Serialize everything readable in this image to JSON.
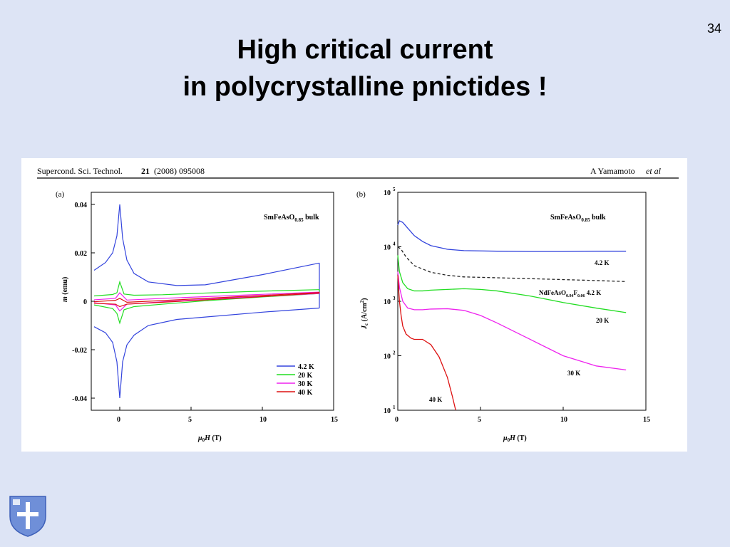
{
  "slide": {
    "number": "34",
    "title_line1": "High critical current",
    "title_line2": "in polycrystalline pnictides !"
  },
  "citation": {
    "journal": "Supercond. Sci. Technol.",
    "volume": "21",
    "year_article": "(2008) 095008",
    "authors": "A Yamamoto",
    "et_al": "et al"
  },
  "colors": {
    "background": "#dde4f5",
    "series_4_2K": "#3344dd",
    "series_20K": "#22dd22",
    "series_30K": "#ee22ee",
    "series_40K": "#dd1111",
    "nd_reference": "#222222"
  },
  "chart_data": [
    {
      "panel_label": "(a)",
      "type": "line",
      "annotation": "SmFeAsO0.85 bulk",
      "xlabel": "μ0H (T)",
      "ylabel": "m (emu)",
      "xlim": [
        -2,
        15
      ],
      "ylim": [
        -0.045,
        0.045
      ],
      "xticks": [
        "0",
        "5",
        "10",
        "15"
      ],
      "yticks": [
        "0.04",
        "0.02",
        "0",
        "-0.02",
        "-0.04"
      ],
      "legend": {
        "placement": "bottom-right",
        "entries": [
          "4.2 K",
          "20 K",
          "30 K",
          "40 K"
        ]
      },
      "series": [
        {
          "name": "4.2 K",
          "x_upper": [
            -1.8,
            -1.0,
            -0.5,
            -0.2,
            0,
            0.2,
            0.5,
            1,
            2,
            4,
            6,
            10,
            14
          ],
          "y_upper": [
            0.0128,
            0.016,
            0.02,
            0.027,
            0.04,
            0.026,
            0.017,
            0.0115,
            0.008,
            0.0065,
            0.0068,
            0.011,
            0.0158
          ],
          "x_lower": [
            -1.8,
            -1.0,
            -0.5,
            -0.2,
            0,
            0.2,
            0.5,
            1,
            2,
            4,
            6,
            10,
            14
          ],
          "y_lower": [
            -0.0105,
            -0.013,
            -0.017,
            -0.025,
            -0.04,
            -0.025,
            -0.018,
            -0.014,
            -0.01,
            -0.0075,
            -0.0065,
            -0.0045,
            -0.0028
          ]
        },
        {
          "name": "20 K",
          "x_upper": [
            -1.8,
            -0.5,
            -0.2,
            0,
            0.3,
            1,
            3,
            6,
            10,
            14
          ],
          "y_upper": [
            0.0022,
            0.0028,
            0.0035,
            0.008,
            0.003,
            0.0025,
            0.0027,
            0.0034,
            0.0042,
            0.0048
          ],
          "x_lower": [
            -1.8,
            -0.5,
            -0.2,
            0,
            0.3,
            1,
            3,
            6,
            10,
            14
          ],
          "y_lower": [
            -0.0015,
            -0.003,
            -0.005,
            -0.009,
            -0.0035,
            -0.0022,
            -0.0012,
            0.0002,
            0.0018,
            0.0032
          ]
        },
        {
          "name": "30 K",
          "x_upper": [
            -1.8,
            -0.3,
            0,
            0.5,
            3,
            8,
            14
          ],
          "y_upper": [
            0.0006,
            0.0012,
            0.0035,
            0.0005,
            0.0012,
            0.0024,
            0.0038
          ],
          "x_lower": [
            -1.8,
            -0.3,
            0,
            0.5,
            3,
            8,
            14
          ],
          "y_lower": [
            -0.0006,
            -0.0015,
            -0.004,
            -0.0012,
            -0.0002,
            0.0015,
            0.0032
          ]
        },
        {
          "name": "40 K",
          "x_upper": [
            -1.8,
            -0.3,
            0,
            0.5,
            3,
            8,
            14
          ],
          "y_upper": [
            -0.0002,
            0.0004,
            0.0012,
            -0.0004,
            0.0003,
            0.0018,
            0.0036
          ],
          "x_lower": [
            -1.8,
            -0.3,
            0,
            0.5,
            3,
            8,
            14
          ],
          "y_lower": [
            -0.0008,
            -0.0012,
            -0.0022,
            -0.0012,
            -0.0004,
            0.0012,
            0.0034
          ]
        }
      ]
    },
    {
      "panel_label": "(b)",
      "type": "line",
      "annotation": "SmFeAsO0.85 bulk",
      "xlabel": "μ0H (T)",
      "ylabel": "Jc (A/cm2)",
      "log_y": true,
      "xlim": [
        0,
        15
      ],
      "ylim": [
        10,
        100000
      ],
      "xticks": [
        "0",
        "5",
        "10",
        "15"
      ],
      "yticks_exponent": [
        "5",
        "4",
        "3",
        "2",
        "1"
      ],
      "series": [
        {
          "name": "4.2 K",
          "x": [
            0,
            0.1,
            0.3,
            0.6,
            1,
            1.5,
            2,
            3,
            4,
            6,
            8,
            10,
            12,
            13.8
          ],
          "y": [
            25000,
            30000,
            28000,
            22000,
            16000,
            12500,
            10500,
            9000,
            8500,
            8300,
            8200,
            8200,
            8300,
            8300
          ]
        },
        {
          "name": "NdFeAsO0.94F0.06 4.2 K",
          "dashed": true,
          "x": [
            0,
            0.2,
            0.5,
            1,
            2,
            3,
            4,
            6,
            8,
            10,
            12,
            13.8
          ],
          "y": [
            10000,
            9000,
            6500,
            4500,
            3400,
            3000,
            2800,
            2700,
            2600,
            2500,
            2400,
            2300
          ]
        },
        {
          "name": "20 K",
          "x": [
            0,
            0.1,
            0.3,
            0.6,
            1,
            1.5,
            2,
            3,
            4,
            5,
            6,
            8,
            10,
            12,
            13.8
          ],
          "y": [
            7000,
            3500,
            2200,
            1700,
            1550,
            1550,
            1600,
            1650,
            1700,
            1650,
            1550,
            1250,
            950,
            750,
            620
          ]
        },
        {
          "name": "30 K",
          "x": [
            0,
            0.1,
            0.3,
            0.6,
            1,
            1.5,
            2,
            3,
            4,
            5,
            6,
            8,
            10,
            12,
            13.8
          ],
          "y": [
            3500,
            1800,
            1000,
            750,
            700,
            700,
            720,
            730,
            680,
            550,
            400,
            200,
            100,
            65,
            55
          ]
        },
        {
          "name": "40 K",
          "x": [
            0,
            0.1,
            0.2,
            0.3,
            0.5,
            0.8,
            1,
            1.5,
            2,
            2.5,
            3,
            3.3,
            3.5
          ],
          "y": [
            3000,
            1000,
            550,
            350,
            250,
            210,
            200,
            200,
            160,
            95,
            40,
            18,
            10
          ]
        }
      ],
      "curve_labels": [
        "4.2 K",
        "NdFeAsO0.94F0.06 4.2 K",
        "20 K",
        "30 K",
        "40 K"
      ]
    }
  ]
}
